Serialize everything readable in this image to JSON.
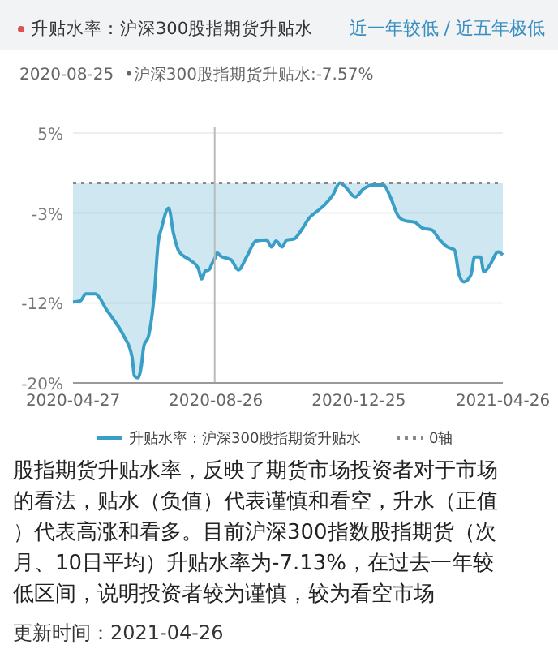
{
  "chart_data": {
    "type": "area",
    "title": "升贴水率：沪深300股指期货升贴水",
    "subtitle": "近一年较低 / 近五年极低",
    "x": [
      "2020-04-27",
      "2020-05-03",
      "2020-05-08",
      "2020-05-16",
      "2020-05-19",
      "2020-05-25",
      "2020-05-31",
      "2020-06-09",
      "2020-06-16",
      "2020-06-18",
      "2020-06-21",
      "2020-06-24",
      "2020-06-26",
      "2020-06-30",
      "2020-07-05",
      "2020-07-08",
      "2020-07-11",
      "2020-07-17",
      "2020-07-21",
      "2020-07-26",
      "2020-08-04",
      "2020-08-11",
      "2020-08-14",
      "2020-08-17",
      "2020-08-20",
      "2020-08-23",
      "2020-08-25",
      "2020-08-27",
      "2020-08-30",
      "2020-09-08",
      "2020-09-14",
      "2020-09-21",
      "2020-09-29",
      "2020-10-08",
      "2020-10-12",
      "2020-10-16",
      "2020-10-21",
      "2020-10-25",
      "2020-10-31",
      "2020-11-07",
      "2020-11-13",
      "2020-11-20",
      "2020-11-26",
      "2020-12-03",
      "2020-12-09",
      "2020-12-13",
      "2020-12-22",
      "2020-12-29",
      "2021-01-06",
      "2021-01-15",
      "2021-01-20",
      "2021-01-28",
      "2021-02-03",
      "2021-02-10",
      "2021-02-17",
      "2021-02-25",
      "2021-03-03",
      "2021-03-10",
      "2021-03-16",
      "2021-03-20",
      "2021-03-24",
      "2021-03-30",
      "2021-04-02",
      "2021-04-07",
      "2021-04-10",
      "2021-04-15",
      "2021-04-22",
      "2021-04-26"
    ],
    "series": [
      {
        "name": "升贴水率：沪深300股指期货升贴水",
        "color": "#3a9fc6",
        "values": [
          -11.9,
          -11.8,
          -11.1,
          -11.1,
          -11.4,
          -12.6,
          -13.6,
          -15.3,
          -17.4,
          -19.3,
          -19.5,
          -18.2,
          -16.3,
          -15.3,
          -10.9,
          -6.1,
          -4.5,
          -2.5,
          -5.0,
          -6.9,
          -7.7,
          -8.5,
          -9.6,
          -8.8,
          -8.7,
          -8.0,
          -7.57,
          -7.0,
          -7.3,
          -7.7,
          -8.7,
          -7.4,
          -5.8,
          -5.7,
          -6.4,
          -5.8,
          -6.4,
          -5.7,
          -5.6,
          -4.6,
          -3.5,
          -2.8,
          -2.2,
          -1.2,
          0,
          -0.3,
          -1.4,
          -0.6,
          -0.2,
          -0.2,
          -1.2,
          -3.4,
          -3.8,
          -3.9,
          -4.5,
          -4.7,
          -5.6,
          -6.4,
          -6.7,
          -9.2,
          -9.9,
          -9.2,
          -7.4,
          -7.4,
          -8.9,
          -8.2,
          -6.9,
          -7.2
        ]
      }
    ],
    "xlim": [
      "2020-04-27",
      "2021-04-26"
    ],
    "xticks": [
      {
        "value": "2020-04-27",
        "label": "2020-04-27"
      },
      {
        "value": "2020-08-26",
        "label": "2020-08-26"
      },
      {
        "value": "2020-12-25",
        "label": "2020-12-25"
      },
      {
        "value": "2021-04-26",
        "label": "2021-04-26"
      }
    ],
    "ylim": [
      -20,
      5
    ],
    "yticks": [
      {
        "value": 5,
        "label": "5%"
      },
      {
        "value": -3,
        "label": "-3%"
      },
      {
        "value": -12,
        "label": "-12%"
      },
      {
        "value": -20,
        "label": "-20%"
      }
    ],
    "grid": "y",
    "legend": "bottom",
    "marker": "none",
    "ref_lines": [
      {
        "axis": "y",
        "value": 0,
        "label": "0轴",
        "color": "#888888",
        "line_style": "dotted"
      },
      {
        "axis": "x",
        "value": "2020-08-25",
        "color": "#bbbbbb"
      }
    ],
    "annotations": [
      "2020-08-25  •沪深300股指期货升贴水:-7.57%",
      "股指期货升贴水率，反映了期货市场投资者对于市场的看法，贴水（负值）代表谨慎和看空，升水（正值）代表高涨和看多。目前沪深300指数股指期货（次月、10日平均）升贴水率为-7.13%，在过去一年较低区间，说明投资者较为谨慎，较为看空市场",
      "更新时间：2021-04-26"
    ]
  }
}
